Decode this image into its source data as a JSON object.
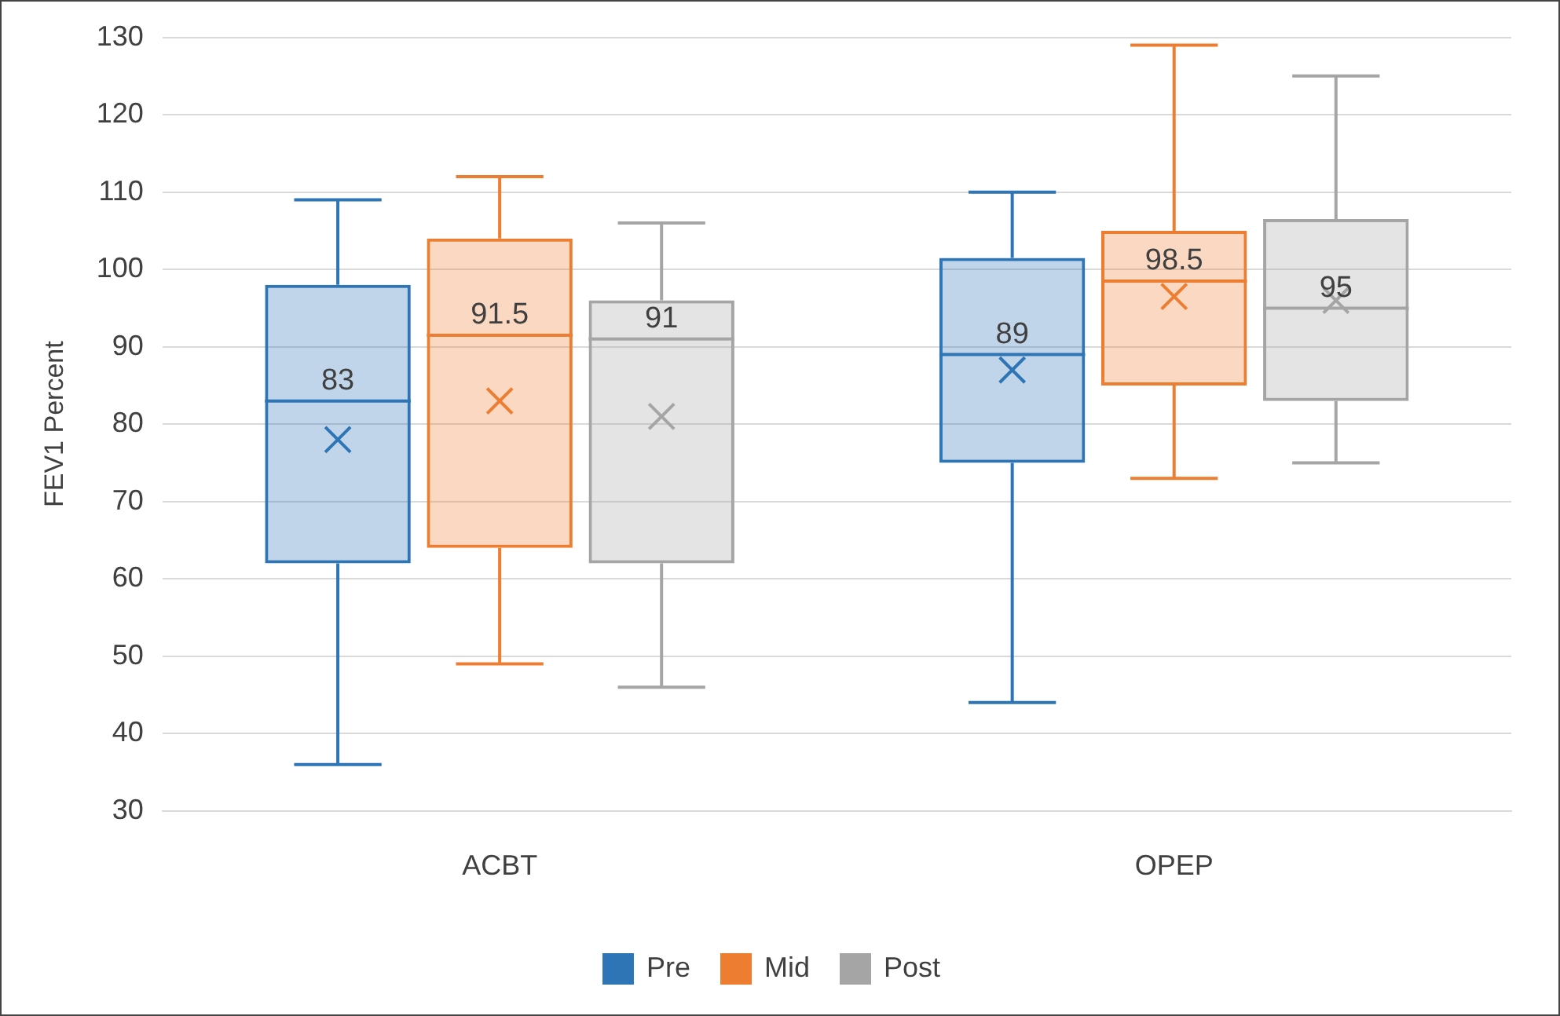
{
  "chart_data": {
    "type": "box",
    "ylabel": "FEV1 Percent",
    "categories": [
      "ACBT",
      "OPEP"
    ],
    "ylim": [
      30,
      130
    ],
    "yticks": [
      30,
      40,
      50,
      60,
      70,
      80,
      90,
      100,
      110,
      120,
      130
    ],
    "grid": "y",
    "legend": "bottom",
    "marker": "cross",
    "series": [
      {
        "name": "Pre",
        "color": "#2e75b6",
        "value_labels": [
          "83",
          "89"
        ],
        "boxes": [
          {
            "low": 36,
            "q1": 62,
            "median": 83,
            "q3": 98,
            "high": 109,
            "mean": 78
          },
          {
            "low": 44,
            "q1": 75,
            "median": 89,
            "q3": 101.5,
            "high": 110,
            "mean": 87
          }
        ]
      },
      {
        "name": "Mid",
        "color": "#ed7d31",
        "value_labels": [
          "91.5",
          "98.5"
        ],
        "boxes": [
          {
            "low": 49,
            "q1": 64,
            "median": 91.5,
            "q3": 104,
            "high": 112,
            "mean": 83
          },
          {
            "low": 73,
            "q1": 85,
            "median": 98.5,
            "q3": 105,
            "high": 129,
            "mean": 96.5
          }
        ]
      },
      {
        "name": "Post",
        "color": "#a5a5a5",
        "value_labels": [
          "91",
          "95"
        ],
        "boxes": [
          {
            "low": 46,
            "q1": 62,
            "median": 91,
            "q3": 96,
            "high": 106,
            "mean": 81
          },
          {
            "low": 75,
            "q1": 83,
            "median": 95,
            "q3": 106.5,
            "high": 125,
            "mean": 96
          }
        ]
      }
    ]
  }
}
